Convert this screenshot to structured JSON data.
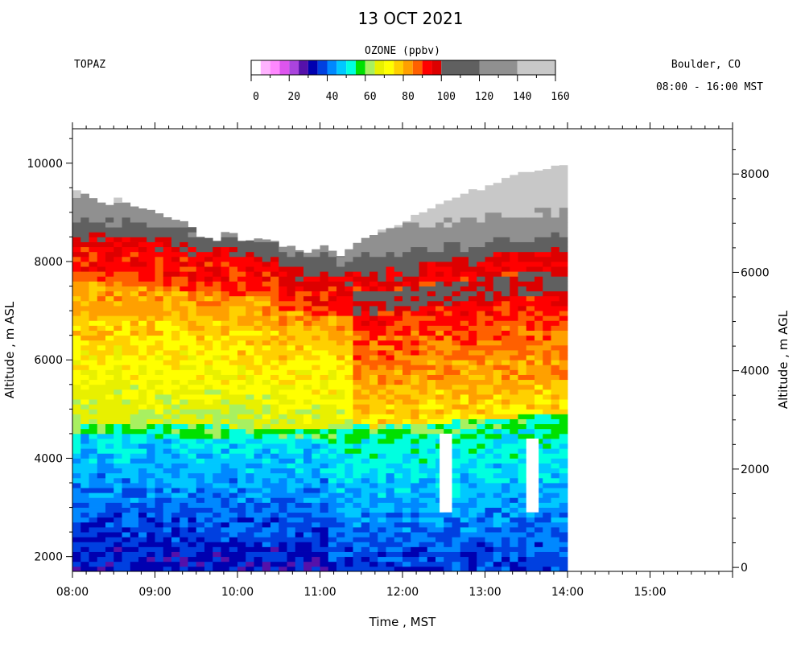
{
  "chart_data": {
    "type": "heatmap",
    "title": "13 OCT 2021",
    "site_label": "TOPAZ",
    "location": "Boulder, CO",
    "time_range_label": "08:00 - 16:00 MST",
    "colorbar": {
      "title": "OZONE (ppbv)",
      "tick_labels": [
        "0",
        "20",
        "40",
        "60",
        "80",
        "100",
        "120",
        "140",
        "160"
      ],
      "bins": [
        {
          "from": 0,
          "to": 5,
          "color": "#ffffff"
        },
        {
          "from": 5,
          "to": 10,
          "color": "#ffb3ff"
        },
        {
          "from": 10,
          "to": 15,
          "color": "#ff88ff"
        },
        {
          "from": 15,
          "to": 20,
          "color": "#dd55ee"
        },
        {
          "from": 20,
          "to": 25,
          "color": "#aa44dd"
        },
        {
          "from": 25,
          "to": 30,
          "color": "#5511aa"
        },
        {
          "from": 30,
          "to": 35,
          "color": "#0000b0"
        },
        {
          "from": 35,
          "to": 40,
          "color": "#0040e0"
        },
        {
          "from": 40,
          "to": 45,
          "color": "#0088ff"
        },
        {
          "from": 45,
          "to": 50,
          "color": "#00c8ff"
        },
        {
          "from": 50,
          "to": 55,
          "color": "#00ffe0"
        },
        {
          "from": 55,
          "to": 60,
          "color": "#00e000"
        },
        {
          "from": 60,
          "to": 65,
          "color": "#a8f060"
        },
        {
          "from": 65,
          "to": 70,
          "color": "#e8f000"
        },
        {
          "from": 70,
          "to": 75,
          "color": "#ffff00"
        },
        {
          "from": 75,
          "to": 80,
          "color": "#ffd000"
        },
        {
          "from": 80,
          "to": 85,
          "color": "#ffa000"
        },
        {
          "from": 85,
          "to": 90,
          "color": "#ff6000"
        },
        {
          "from": 90,
          "to": 95,
          "color": "#ff0000"
        },
        {
          "from": 95,
          "to": 100,
          "color": "#dd0000"
        },
        {
          "from": 100,
          "to": 120,
          "color": "#606060"
        },
        {
          "from": 120,
          "to": 140,
          "color": "#909090"
        },
        {
          "from": 140,
          "to": 160,
          "color": "#c8c8c8"
        }
      ]
    },
    "x_axis": {
      "label": "Time , MST",
      "range": [
        8.0,
        16.0
      ],
      "tick_labels": [
        "08:00",
        "09:00",
        "10:00",
        "11:00",
        "12:00",
        "13:00",
        "14:00",
        "15:00"
      ],
      "tick_values": [
        8,
        9,
        10,
        11,
        12,
        13,
        14,
        15
      ]
    },
    "y_axis_left": {
      "label": "Altitude , m ASL",
      "range": [
        1700,
        10700
      ],
      "tick_labels": [
        "2000",
        "4000",
        "6000",
        "8000",
        "10000"
      ],
      "tick_values": [
        2000,
        4000,
        6000,
        8000,
        10000
      ]
    },
    "y_axis_right": {
      "label": "Altitude , m AGL",
      "tick_labels": [
        "0",
        "2000",
        "4000",
        "6000",
        "8000"
      ],
      "tick_values": [
        0,
        2000,
        4000,
        6000,
        8000
      ]
    },
    "profiles": {
      "time_start": 8.0,
      "time_step": 0.1,
      "top_altitude_m_asl": [
        9450,
        9380,
        9290,
        9200,
        9150,
        9300,
        9200,
        9120,
        9080,
        9050,
        8980,
        8900,
        8850,
        8820,
        8700,
        8500,
        8480,
        8420,
        8600,
        8580,
        8420,
        8430,
        8470,
        8450,
        8420,
        8300,
        8320,
        8230,
        8180,
        8250,
        8330,
        8220,
        8110,
        8250,
        8380,
        8480,
        8540,
        8650,
        8680,
        8740,
        8820,
        8950,
        9000,
        9080,
        9170,
        9240,
        9300,
        9380,
        9470,
        9450,
        9550,
        9600,
        9700,
        9760,
        9820,
        9820,
        9850,
        9880,
        9950,
        9960
      ],
      "layer_boundaries_m_asl": {
        "low_ozone_top": [
          4420,
          4430,
          4440,
          4450,
          4440,
          4430,
          4420,
          4440,
          4430,
          4420,
          4400,
          4410,
          4420,
          4400,
          4390,
          4380,
          4370,
          4380,
          4360,
          4350,
          4340,
          4330,
          4320,
          4310,
          4310,
          4300,
          4300,
          4310,
          4320,
          4330,
          4330,
          4340,
          4350,
          4360,
          4360,
          4360,
          4350,
          4360,
          4370,
          4380,
          4390,
          4400,
          4410,
          4420,
          4430,
          4450,
          4460,
          4470,
          4480,
          4500,
          4520,
          4530,
          4540,
          4550,
          4560,
          4560,
          4570,
          4570,
          4580,
          4580
        ],
        "stratospheric_bottom": [
          8100,
          8090,
          8070,
          8060,
          8040,
          8050,
          8040,
          8020,
          8010,
          8000,
          7980,
          7960,
          7940,
          7920,
          7890,
          7860,
          7840,
          7820,
          7830,
          7800,
          7780,
          7760,
          7740,
          7720,
          7700,
          7400,
          7380,
          7360,
          7340,
          7350,
          7320,
          7300,
          7290,
          7300,
          7310,
          7320,
          7340,
          7360,
          7380,
          7400,
          7420,
          7450,
          7480,
          7500,
          7520,
          7540,
          7560,
          7580,
          7600,
          7620,
          7640,
          7660,
          7680,
          7700,
          7720,
          7730,
          7740,
          7750,
          7760,
          7770
        ]
      }
    },
    "data_gaps": [
      {
        "time_start": 12.45,
        "time_end": 12.6,
        "alt_min": 2900,
        "alt_max": 4500
      },
      {
        "time_start": 13.5,
        "time_end": 13.65,
        "alt_min": 2900,
        "alt_max": 4400
      },
      {
        "time_start": 15.85,
        "time_end": 16.0,
        "alt_min": 3000,
        "alt_max": 9900
      }
    ],
    "grid": false,
    "legend_placement": "top-center"
  }
}
